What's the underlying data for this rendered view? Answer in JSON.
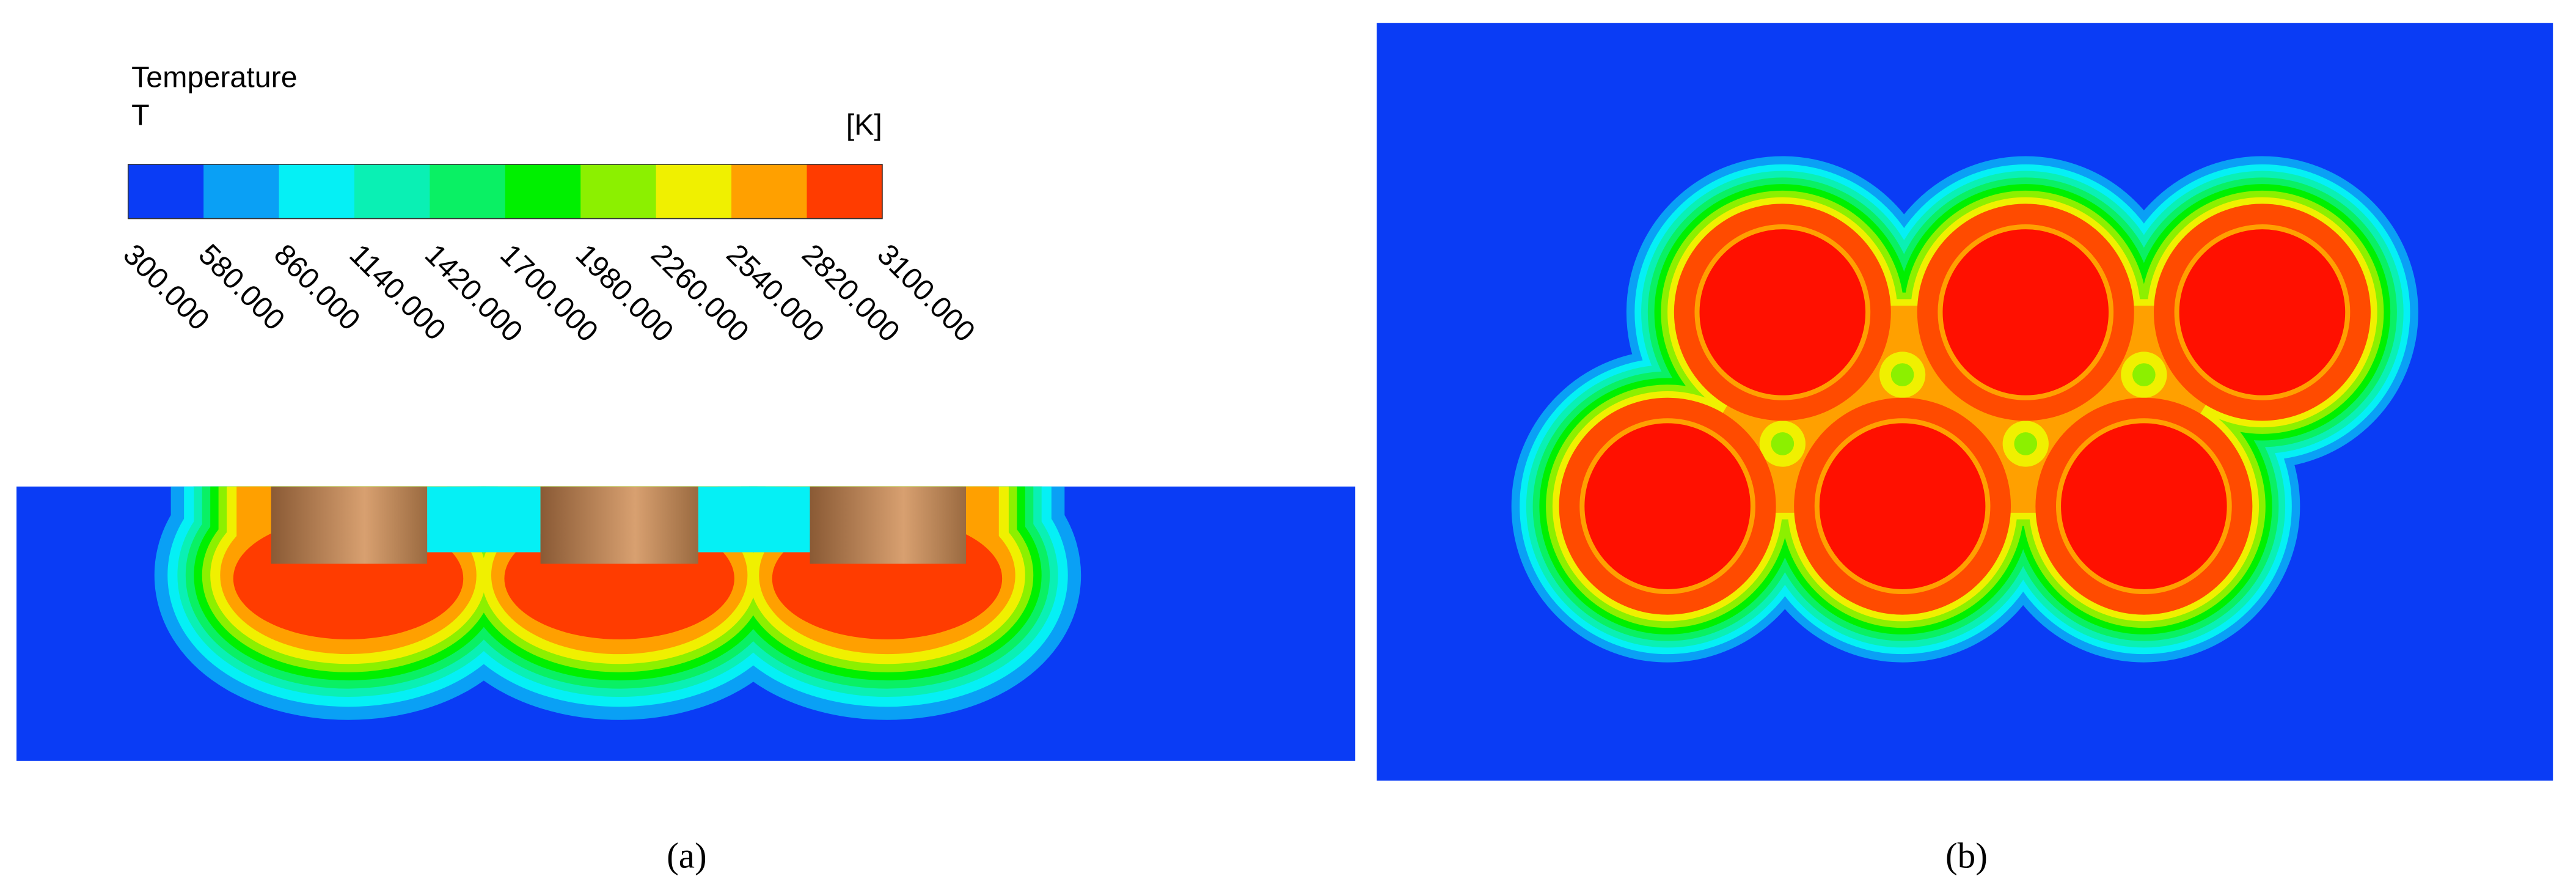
{
  "legend": {
    "title": "Temperature",
    "variable": "T",
    "unit": "[K]",
    "ticks": [
      "300.000",
      "580.000",
      "860.000",
      "1140.000",
      "1420.000",
      "1700.000",
      "1980.000",
      "2260.000",
      "2540.000",
      "2820.000",
      "3100.000"
    ],
    "colors": [
      "#0a3cf5",
      "#0aa0f5",
      "#05f0f5",
      "#0af0b4",
      "#0af064",
      "#00f000",
      "#8cf000",
      "#f0f000",
      "#ffa000",
      "#ff3c00"
    ]
  },
  "panels": [
    {
      "label": "(a)"
    },
    {
      "label": "(b)"
    }
  ]
}
